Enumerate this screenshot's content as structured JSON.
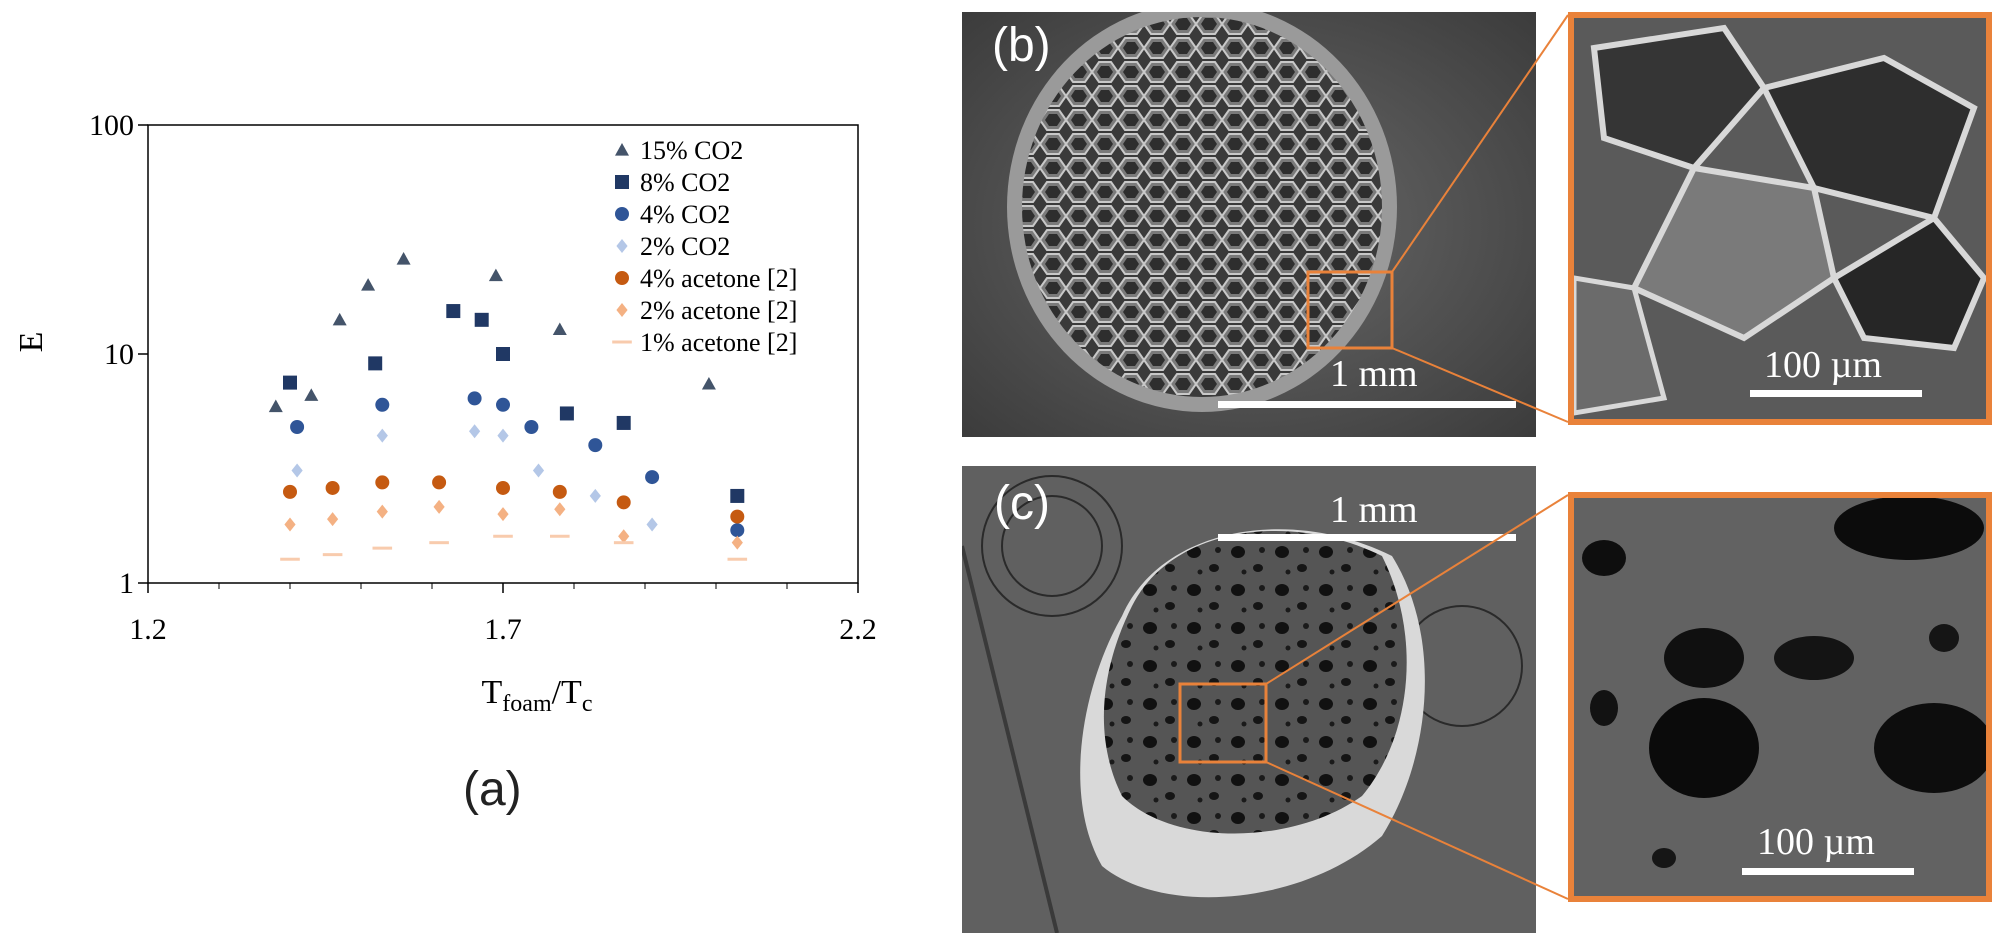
{
  "panel_a": {
    "label": "(a)",
    "chart_data": {
      "type": "scatter",
      "ylabel": "E",
      "xlabel_main": "T",
      "xlabel_sub1": "foam",
      "xlabel_mid": "/T",
      "xlabel_sub2": "c",
      "xlim": [
        1.2,
        2.2
      ],
      "ylim": [
        1,
        100
      ],
      "y_scale": "log",
      "x_ticks": [
        1.2,
        1.7,
        2.2
      ],
      "x_tick_labels": [
        "1.2",
        "1.7",
        "2.2"
      ],
      "y_ticks": [
        1,
        10,
        100
      ],
      "y_tick_labels": [
        "1",
        "10",
        "100"
      ],
      "legend_position": "top-right",
      "series": [
        {
          "name": "15% CO2",
          "marker": "triangle",
          "color": "#44546a",
          "points": [
            [
              1.38,
              5.9
            ],
            [
              1.43,
              6.6
            ],
            [
              1.47,
              14.1
            ],
            [
              1.51,
              20
            ],
            [
              1.56,
              26
            ],
            [
              1.69,
              22
            ],
            [
              1.78,
              12.8
            ],
            [
              1.99,
              7.4
            ]
          ]
        },
        {
          "name": "8% CO2",
          "marker": "square",
          "color": "#203864",
          "points": [
            [
              1.4,
              7.5
            ],
            [
              1.52,
              9.1
            ],
            [
              1.63,
              15.4
            ],
            [
              1.67,
              14.1
            ],
            [
              1.7,
              10
            ],
            [
              1.79,
              5.5
            ],
            [
              1.87,
              5
            ],
            [
              2.03,
              2.4
            ]
          ]
        },
        {
          "name": "4% CO2",
          "marker": "circle",
          "color": "#2f5597",
          "points": [
            [
              1.41,
              4.8
            ],
            [
              1.53,
              6
            ],
            [
              1.66,
              6.4
            ],
            [
              1.7,
              6
            ],
            [
              1.74,
              4.8
            ],
            [
              1.83,
              4
            ],
            [
              1.91,
              2.9
            ],
            [
              2.03,
              1.7
            ]
          ]
        },
        {
          "name": "2% CO2",
          "marker": "diamond",
          "color": "#b4c7e7",
          "points": [
            [
              1.41,
              3.1
            ],
            [
              1.53,
              4.4
            ],
            [
              1.66,
              4.6
            ],
            [
              1.7,
              4.4
            ],
            [
              1.75,
              3.1
            ],
            [
              1.83,
              2.4
            ],
            [
              1.91,
              1.8
            ]
          ]
        },
        {
          "name": "4% acetone [2]",
          "marker": "circle",
          "color": "#c55a11",
          "points": [
            [
              1.4,
              2.5
            ],
            [
              1.46,
              2.6
            ],
            [
              1.53,
              2.75
            ],
            [
              1.61,
              2.75
            ],
            [
              1.7,
              2.6
            ],
            [
              1.78,
              2.5
            ],
            [
              1.87,
              2.25
            ],
            [
              2.03,
              1.95
            ]
          ]
        },
        {
          "name": "2% acetone [2]",
          "marker": "diamond",
          "color": "#f4b183",
          "points": [
            [
              1.4,
              1.8
            ],
            [
              1.46,
              1.9
            ],
            [
              1.53,
              2.05
            ],
            [
              1.61,
              2.15
            ],
            [
              1.7,
              2
            ],
            [
              1.78,
              2.1
            ],
            [
              1.87,
              1.6
            ],
            [
              2.03,
              1.5
            ]
          ]
        },
        {
          "name": "1% acetone [2]",
          "marker": "dash",
          "color": "#f8cbad",
          "points": [
            [
              1.4,
              1.27
            ],
            [
              1.46,
              1.33
            ],
            [
              1.53,
              1.42
            ],
            [
              1.61,
              1.5
            ],
            [
              1.7,
              1.6
            ],
            [
              1.78,
              1.6
            ],
            [
              1.87,
              1.5
            ],
            [
              2.03,
              1.27
            ]
          ]
        }
      ]
    }
  },
  "panel_b": {
    "label": "(b)",
    "scale_main": "1 mm",
    "scale_zoom": "100 µm"
  },
  "panel_c": {
    "label": "(c)",
    "scale_main": "1 mm",
    "scale_zoom": "100 µm"
  },
  "colors": {
    "zoom_frame": "#e9823a",
    "sem_background": "#585858"
  }
}
